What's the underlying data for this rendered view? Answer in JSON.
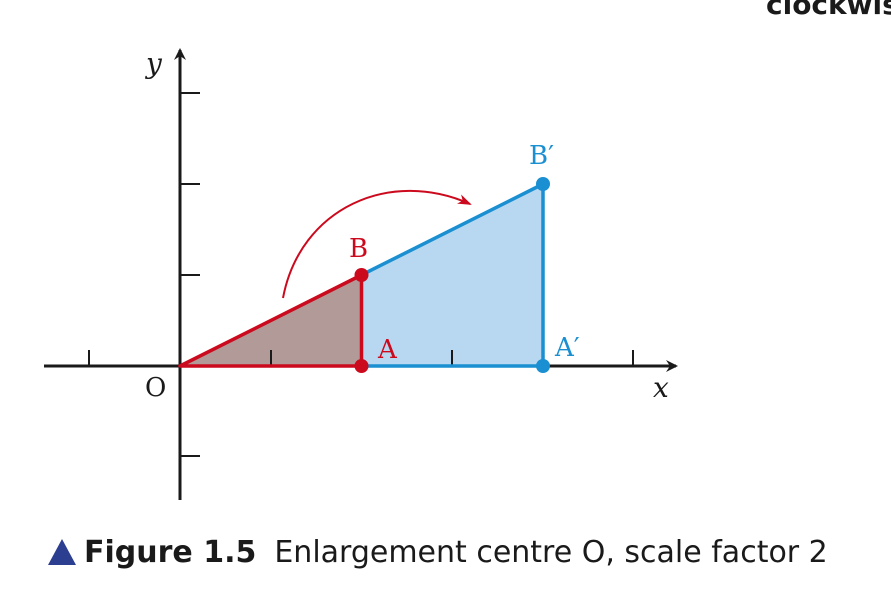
{
  "header_fragment": "clockwis",
  "figure": {
    "number": "Figure 1.5",
    "caption": "Enlargement centre O, scale factor 2"
  },
  "axes": {
    "x_label": "x",
    "y_label": "y",
    "origin_label": "O"
  },
  "original_shape": {
    "color": "#cc0a1e",
    "fill": "#b19a98",
    "points": [
      {
        "label": "O",
        "x": 0,
        "y": 0
      },
      {
        "label": "A",
        "x": 2,
        "y": 0
      },
      {
        "label": "B",
        "x": 2,
        "y": 1
      }
    ]
  },
  "image_shape": {
    "color": "#1a8fd1",
    "fill": "#b7d8f0",
    "points": [
      {
        "label": "O",
        "x": 0,
        "y": 0
      },
      {
        "label": "A′",
        "x": 4,
        "y": 0
      },
      {
        "label": "B′",
        "x": 4,
        "y": 2
      }
    ]
  },
  "arrow_color": "#cc0a1e",
  "caption_marker_color": "#2c3e8f"
}
